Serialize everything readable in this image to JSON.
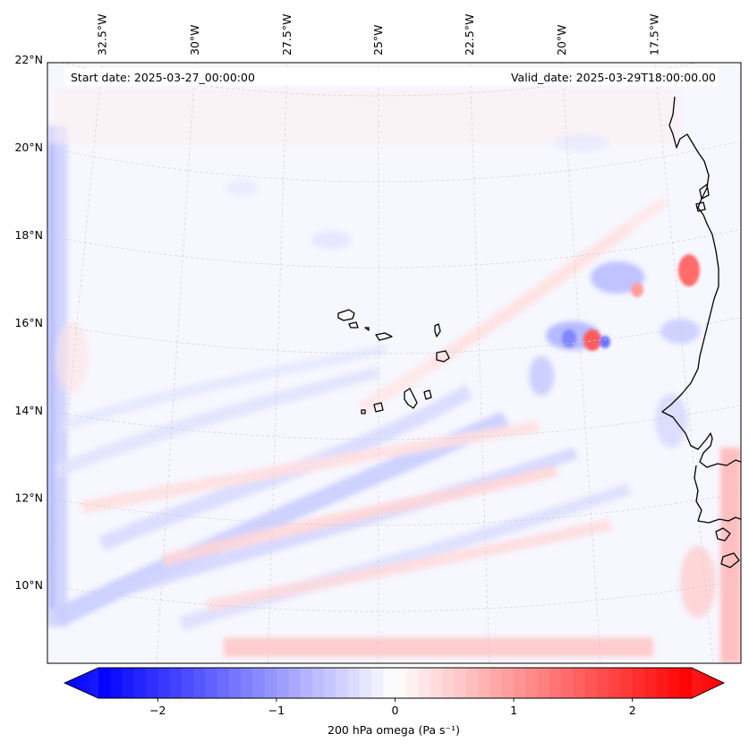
{
  "map": {
    "projection": "lambert-conformal",
    "extent": {
      "lon_min": -33.2,
      "lon_max": -16.2,
      "lat_min": 8.8,
      "lat_max": 22.8
    },
    "header": {
      "start_date": "Start date: 2025-03-27_00:00:00",
      "valid_date": "Valid_date: 2025-03-29T18:00:00.00"
    },
    "longitude_ticks": [
      {
        "value": -32.5,
        "label": "32.5°W"
      },
      {
        "value": -30.0,
        "label": "30°W"
      },
      {
        "value": -27.5,
        "label": "27.5°W"
      },
      {
        "value": -25.0,
        "label": "25°W"
      },
      {
        "value": -22.5,
        "label": "22.5°W"
      },
      {
        "value": -20.0,
        "label": "20°W"
      },
      {
        "value": -17.5,
        "label": "17.5°W"
      }
    ],
    "latitude_ticks": [
      {
        "value": 22,
        "label": "22°N"
      },
      {
        "value": 20,
        "label": "20°N"
      },
      {
        "value": 18,
        "label": "18°N"
      },
      {
        "value": 16,
        "label": "16°N"
      },
      {
        "value": 14,
        "label": "14°N"
      },
      {
        "value": 12,
        "label": "12°N"
      },
      {
        "value": 10,
        "label": "10°N"
      }
    ],
    "features": [
      "Cape Verde islands",
      "West African coastline"
    ]
  },
  "colorbar": {
    "label": "200 hPa omega (Pa s⁻¹)",
    "min": -2.5,
    "max": 2.5,
    "colormap": "bwr",
    "negative_color": "#0000ff",
    "neutral_color": "#ffffff",
    "positive_color": "#ff0000",
    "ticks": [
      {
        "value": -2,
        "label": "−2"
      },
      {
        "value": -1,
        "label": "−1"
      },
      {
        "value": 0,
        "label": "0"
      },
      {
        "value": 1,
        "label": "1"
      },
      {
        "value": 2,
        "label": "2"
      }
    ]
  }
}
